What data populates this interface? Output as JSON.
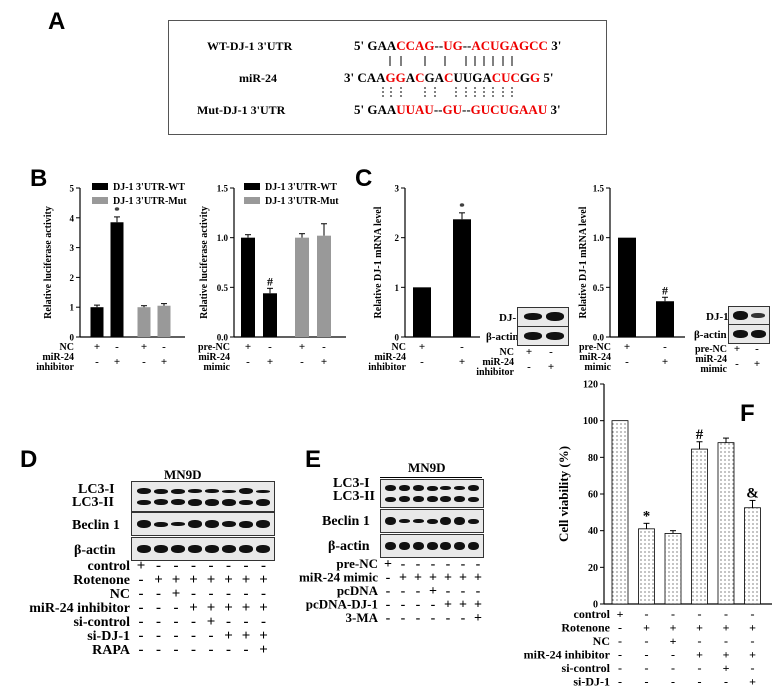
{
  "panels": {
    "A": "A",
    "B": "B",
    "C": "C",
    "D": "D",
    "E": "E",
    "F": "F"
  },
  "panel_a": {
    "rows": [
      {
        "label": "WT-DJ-1 3'UTR",
        "segs": [
          [
            "5' GAA",
            0
          ],
          [
            "CCAG",
            1
          ],
          [
            "--",
            0
          ],
          [
            "UG",
            1
          ],
          [
            "--",
            0
          ],
          [
            "ACUGAGCC",
            1
          ],
          [
            " 3'",
            0
          ]
        ]
      },
      {
        "label": "miR-24",
        "segs": [
          [
            "3' CAA",
            0
          ],
          [
            "GG",
            1
          ],
          [
            "A",
            0
          ],
          [
            "C",
            1
          ],
          [
            "GA",
            0
          ],
          [
            "C",
            1
          ],
          [
            "UUGA",
            0
          ],
          [
            "CUC",
            1
          ],
          [
            "G",
            0
          ],
          [
            "G",
            1
          ],
          [
            " 5'",
            0
          ]
        ]
      },
      {
        "label": "Mut-DJ-1 3'UTR",
        "segs": [
          [
            "5' GAA",
            0
          ],
          [
            "UUAU",
            1
          ],
          [
            "--",
            0
          ],
          [
            "GU",
            1
          ],
          [
            "--",
            0
          ],
          [
            "GUCUGAAU",
            1
          ],
          [
            " 3'",
            0
          ]
        ]
      }
    ]
  },
  "blots": {
    "dj1": "DJ-1",
    "bactin": "β-actin",
    "mn9d": "MN9D",
    "lc3i": "LC3-I",
    "lc3ii": "LC3-II",
    "beclin": "Beclin 1"
  },
  "chart_data": [
    {
      "id": "B1",
      "type": "bar",
      "ylabel": "Relative luciferase activity",
      "ylim": [
        0,
        5
      ],
      "yticks": [
        "0",
        "1",
        "2",
        "3",
        "4",
        "5"
      ],
      "categories": [
        "1",
        "2",
        "3",
        "4"
      ],
      "series": [
        {
          "name": "DJ-1 3'UTR-WT",
          "color": "#000000"
        },
        {
          "name": "DJ-1 3'UTR-Mut",
          "color": "#999999"
        }
      ],
      "bars": [
        {
          "v": 1.0,
          "e": 0.07,
          "c": "#000000",
          "m": ""
        },
        {
          "v": 3.85,
          "e": 0.18,
          "c": "#000000",
          "m": "*"
        },
        {
          "v": 1.0,
          "e": 0.05,
          "c": "#999999",
          "m": ""
        },
        {
          "v": 1.05,
          "e": 0.07,
          "c": "#999999",
          "m": ""
        }
      ],
      "conditions": [
        {
          "label": "NC",
          "signs": [
            "+",
            "-",
            "+",
            "-"
          ]
        },
        {
          "label": "miR-24\ninhibitor",
          "signs": [
            "-",
            "+",
            "-",
            "+"
          ]
        }
      ]
    },
    {
      "id": "B2",
      "type": "bar",
      "ylabel": "Relative luciferase activity",
      "ylim": [
        0,
        1.5
      ],
      "yticks": [
        "0.0",
        "0.5",
        "1.0",
        "1.5"
      ],
      "categories": [
        "1",
        "2",
        "3",
        "4"
      ],
      "series": [
        {
          "name": "DJ-1 3'UTR-WT",
          "color": "#000000"
        },
        {
          "name": "DJ-1 3'UTR-Mut",
          "color": "#999999"
        }
      ],
      "bars": [
        {
          "v": 1.0,
          "e": 0.03,
          "c": "#000000",
          "m": ""
        },
        {
          "v": 0.44,
          "e": 0.05,
          "c": "#000000",
          "m": "#"
        },
        {
          "v": 1.0,
          "e": 0.04,
          "c": "#999999",
          "m": ""
        },
        {
          "v": 1.02,
          "e": 0.12,
          "c": "#999999",
          "m": ""
        }
      ],
      "conditions": [
        {
          "label": "pre-NC",
          "signs": [
            "+",
            "-",
            "+",
            "-"
          ]
        },
        {
          "label": "miR-24\nmimic",
          "signs": [
            "-",
            "+",
            "-",
            "+"
          ]
        }
      ]
    },
    {
      "id": "C1",
      "type": "bar",
      "ylabel": "Relative DJ-1 mRNA level",
      "ylim": [
        0,
        3
      ],
      "yticks": [
        "0",
        "1",
        "2",
        "3"
      ],
      "categories": [
        "1",
        "2"
      ],
      "bars": [
        {
          "v": 1.0,
          "e": 0,
          "c": "#000000",
          "m": ""
        },
        {
          "v": 2.37,
          "e": 0.13,
          "c": "#000000",
          "m": "*"
        }
      ],
      "conditions": [
        {
          "label": "NC",
          "signs": [
            "+",
            "-"
          ]
        },
        {
          "label": "miR-24\ninhibitor",
          "signs": [
            "-",
            "+"
          ]
        }
      ]
    },
    {
      "id": "C2",
      "type": "bar",
      "ylabel": "Relative DJ-1 mRNA level",
      "ylim": [
        0,
        1.5
      ],
      "yticks": [
        "0.0",
        "0.5",
        "1.0",
        "1.5"
      ],
      "categories": [
        "1",
        "2"
      ],
      "bars": [
        {
          "v": 1.0,
          "e": 0,
          "c": "#000000",
          "m": ""
        },
        {
          "v": 0.36,
          "e": 0.04,
          "c": "#000000",
          "m": "#"
        }
      ],
      "conditions": [
        {
          "label": "pre-NC",
          "signs": [
            "+",
            "-"
          ]
        },
        {
          "label": "miR-24\nmimic",
          "signs": [
            "-",
            "+"
          ]
        }
      ]
    },
    {
      "id": "F",
      "type": "bar",
      "ylabel": "Cell viability (%)",
      "ylim": [
        0,
        120
      ],
      "yticks": [
        "0",
        "20",
        "40",
        "60",
        "80",
        "100",
        "120"
      ],
      "categories": [
        "1",
        "2",
        "3",
        "4",
        "5",
        "6"
      ],
      "bars": [
        {
          "v": 100,
          "e": 0,
          "c": "#ffffff",
          "m": ""
        },
        {
          "v": 41,
          "e": 3,
          "c": "#ffffff",
          "m": "*"
        },
        {
          "v": 38.5,
          "e": 1.5,
          "c": "#ffffff",
          "m": ""
        },
        {
          "v": 84.5,
          "e": 4,
          "c": "#ffffff",
          "m": "#"
        },
        {
          "v": 88,
          "e": 2.5,
          "c": "#ffffff",
          "m": ""
        },
        {
          "v": 52.5,
          "e": 4,
          "c": "#ffffff",
          "m": "&"
        }
      ],
      "conditions": [
        {
          "label": "control",
          "signs": [
            "+",
            "-",
            "-",
            "-",
            "-",
            "-"
          ]
        },
        {
          "label": "Rotenone",
          "signs": [
            "-",
            "+",
            "+",
            "+",
            "+",
            "+"
          ]
        },
        {
          "label": "NC",
          "signs": [
            "-",
            "-",
            "+",
            "-",
            "-",
            "-"
          ]
        },
        {
          "label": "miR-24 inhibitor",
          "signs": [
            "-",
            "-",
            "-",
            "+",
            "+",
            "+"
          ]
        },
        {
          "label": "si-control",
          "signs": [
            "-",
            "-",
            "-",
            "-",
            "+",
            "-"
          ]
        },
        {
          "label": "si-DJ-1",
          "signs": [
            "-",
            "-",
            "-",
            "-",
            "-",
            "+"
          ]
        }
      ]
    }
  ],
  "blot_c1": {
    "conditions": [
      {
        "label": "NC",
        "signs": [
          "+",
          "-"
        ]
      },
      {
        "label": "miR-24\ninhibitor",
        "signs": [
          "-",
          "+"
        ]
      }
    ]
  },
  "blot_c2": {
    "conditions": [
      {
        "label": "pre-NC",
        "signs": [
          "+",
          "-"
        ]
      },
      {
        "label": "miR-24\nmimic",
        "signs": [
          "-",
          "+"
        ]
      }
    ]
  },
  "panel_d": {
    "conditions": [
      {
        "label": "control",
        "signs": [
          "+",
          "-",
          "-",
          "-",
          "-",
          "-",
          "-",
          "-"
        ]
      },
      {
        "label": "Rotenone",
        "signs": [
          "-",
          "+",
          "+",
          "+",
          "+",
          "+",
          "+",
          "+"
        ]
      },
      {
        "label": "NC",
        "signs": [
          "-",
          "-",
          "+",
          "-",
          "-",
          "-",
          "-",
          "-"
        ]
      },
      {
        "label": "miR-24 inhibitor",
        "signs": [
          "-",
          "-",
          "-",
          "+",
          "+",
          "+",
          "+",
          "+"
        ]
      },
      {
        "label": "si-control",
        "signs": [
          "-",
          "-",
          "-",
          "-",
          "+",
          "-",
          "-",
          "-"
        ]
      },
      {
        "label": "si-DJ-1",
        "signs": [
          "-",
          "-",
          "-",
          "-",
          "-",
          "+",
          "+",
          "+"
        ]
      },
      {
        "label": "RAPA",
        "signs": [
          "-",
          "-",
          "-",
          "-",
          "-",
          "-",
          "-",
          "+"
        ]
      }
    ]
  },
  "panel_e": {
    "conditions": [
      {
        "label": "pre-NC",
        "signs": [
          "+",
          "-",
          "-",
          "-",
          "-",
          "-",
          "-"
        ]
      },
      {
        "label": "miR-24 mimic",
        "signs": [
          "-",
          "+",
          "+",
          "+",
          "+",
          "+",
          "+"
        ]
      },
      {
        "label": "pcDNA",
        "signs": [
          "-",
          "-",
          "-",
          "+",
          "-",
          "-",
          "-"
        ]
      },
      {
        "label": "pcDNA-DJ-1",
        "signs": [
          "-",
          "-",
          "-",
          "-",
          "+",
          "+",
          "+"
        ]
      },
      {
        "label": "3-MA",
        "signs": [
          "-",
          "-",
          "-",
          "-",
          "-",
          "-",
          "+"
        ]
      }
    ]
  }
}
